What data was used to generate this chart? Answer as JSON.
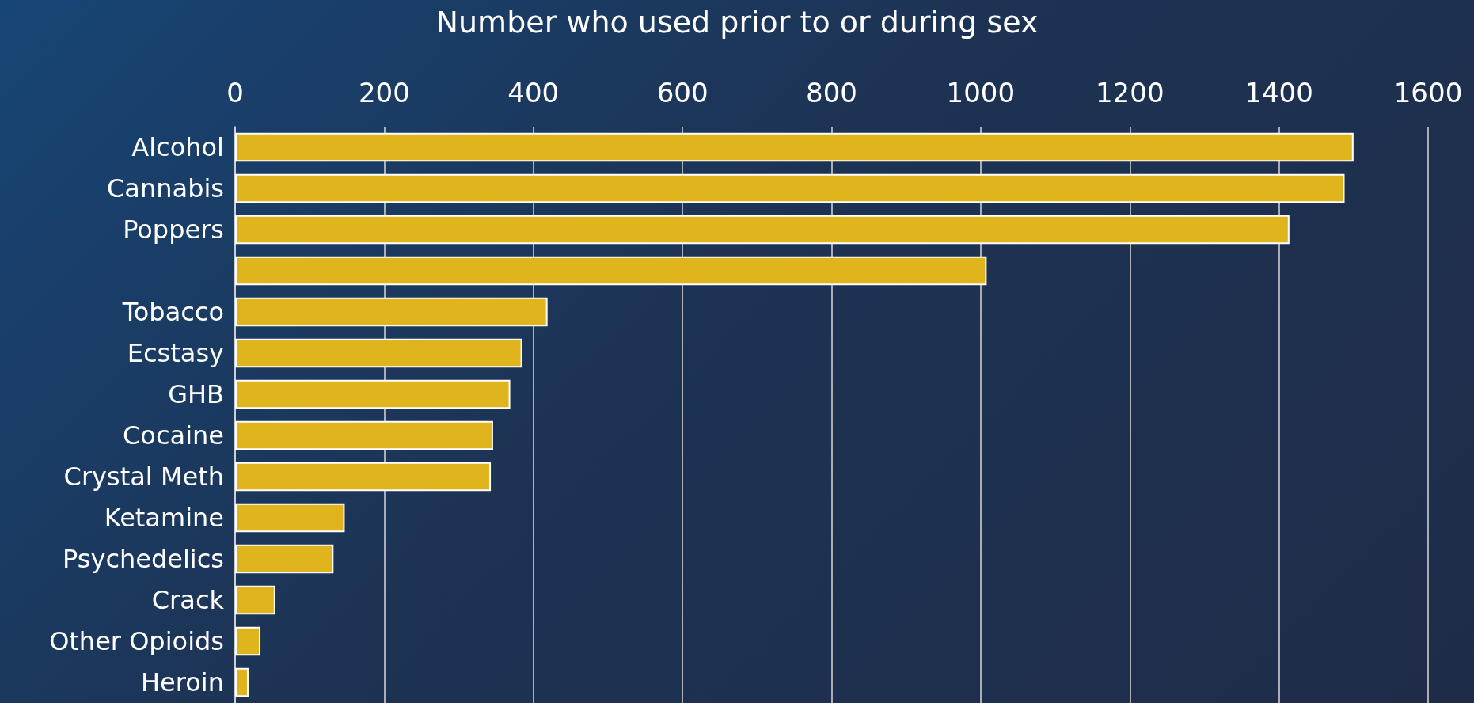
{
  "chart_data": {
    "type": "bar",
    "orientation": "horizontal",
    "title": "Number who used prior to or during sex",
    "categories": [
      "Alcohol",
      "Cannabis",
      "Poppers",
      null,
      "Tobacco",
      "Ecstasy",
      "GHB",
      "Cocaine",
      "Crystal Meth",
      "Ketamine",
      "Psychedelics",
      "Crack",
      "Other Opioids",
      "Heroin"
    ],
    "values": [
      1500,
      1488,
      1414,
      1008,
      419,
      385,
      369,
      346,
      343,
      147,
      132,
      54,
      34,
      18
    ],
    "color": "#e0b41c",
    "xlim": [
      0,
      1600
    ],
    "xticks": [
      0,
      200,
      400,
      600,
      800,
      1000,
      1200,
      1400,
      1600
    ],
    "grid": "x"
  }
}
